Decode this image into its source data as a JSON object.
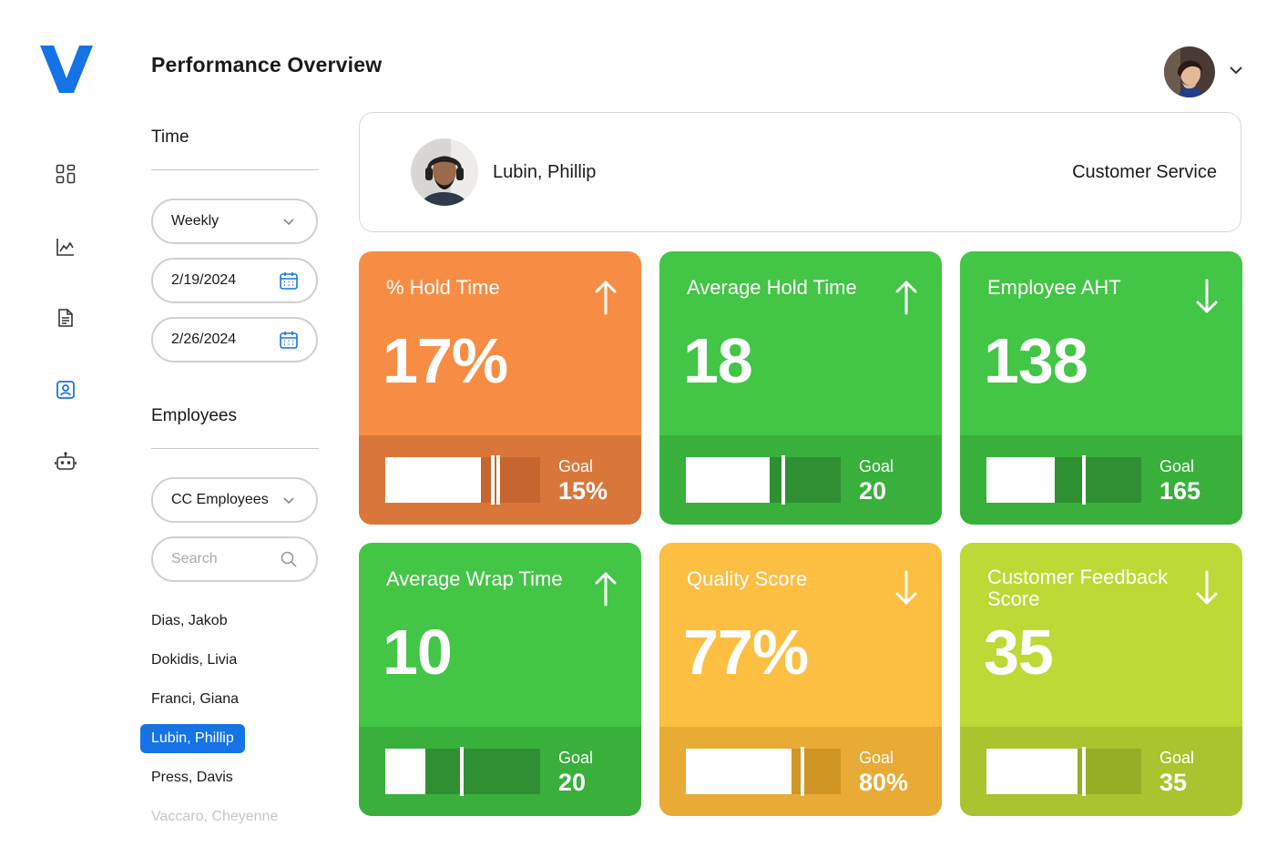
{
  "app": {
    "title": "Performance Overview",
    "logo_letter": "V",
    "accent": "#1673e6"
  },
  "nav": {
    "icons": [
      "dashboard-icon",
      "chart-icon",
      "document-icon",
      "employee-card-icon",
      "robot-icon"
    ],
    "active": "employee-card-icon"
  },
  "filters": {
    "time_label": "Time",
    "period": "Weekly",
    "start_date": "2/19/2024",
    "end_date": "2/26/2024",
    "employees_label": "Employees",
    "employee_group": "CC Employees",
    "search_placeholder": "Search"
  },
  "employees": [
    {
      "name": "Dias, Jakob"
    },
    {
      "name": "Dokidis, Livia"
    },
    {
      "name": "Franci, Giana"
    },
    {
      "name": "Lubin, Phillip",
      "selected": true
    },
    {
      "name": "Press, Davis"
    },
    {
      "name": "Vaccaro, Cheyenne"
    }
  ],
  "profile": {
    "name": "Lubin, Phillip",
    "department": "Customer Service"
  },
  "metrics": [
    {
      "title": "% Hold Time",
      "value": "17%",
      "trend": "up",
      "goal_label": "Goal",
      "goal": "15%",
      "progress": 0.62,
      "goal_mark": 0.68,
      "color": "#f78d44",
      "bottom_color": "#d9773a",
      "track_color": "#c4662e"
    },
    {
      "title": "Average Hold Time",
      "value": "18",
      "trend": "up",
      "goal_label": "Goal",
      "goal": "20",
      "progress": 0.54,
      "goal_mark": 0.62,
      "color": "#43c545",
      "bottom_color": "#38b03b",
      "track_color": "#2f8f33"
    },
    {
      "title": "Employee AHT",
      "value": "138",
      "trend": "down",
      "goal_label": "Goal",
      "goal": "165",
      "progress": 0.44,
      "goal_mark": 0.62,
      "color": "#43c545",
      "bottom_color": "#38b03b",
      "track_color": "#2f8f33"
    },
    {
      "title": "Average Wrap Time",
      "value": "10",
      "trend": "up",
      "goal_label": "Goal",
      "goal": "20",
      "progress": 0.26,
      "goal_mark": 0.48,
      "color": "#43c545",
      "bottom_color": "#38b03b",
      "track_color": "#2f8f33"
    },
    {
      "title": "Quality Score",
      "value": "77%",
      "trend": "down",
      "goal_label": "Goal",
      "goal": "80%",
      "progress": 0.68,
      "goal_mark": 0.74,
      "color": "#fcbf42",
      "bottom_color": "#e8ab36",
      "track_color": "#d09623"
    },
    {
      "title": "Customer Feedback Score",
      "value": "35",
      "trend": "down",
      "goal_label": "Goal",
      "goal": "35",
      "progress": 0.59,
      "goal_mark": 0.62,
      "color": "#bcd935",
      "bottom_color": "#a9c42e",
      "track_color": "#96ad26"
    }
  ]
}
